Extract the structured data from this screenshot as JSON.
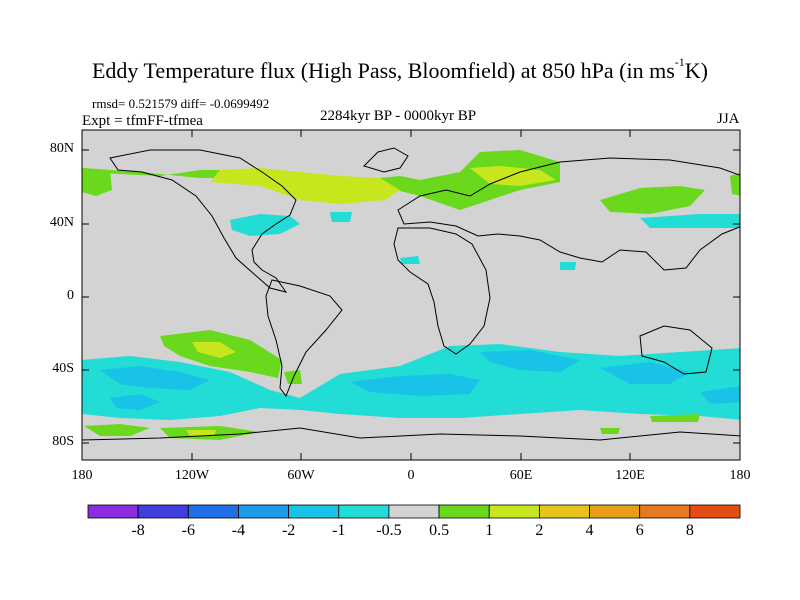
{
  "figure": {
    "title_main": "Eddy Temperature flux (High Pass, Bloomfield) at 850 hPa (in ms",
    "title_sup": "-1",
    "title_end": "K)",
    "stats": "rmsd= 0.521579 diff= -0.0699492",
    "expt": "Expt = tfmFF-tfmea",
    "period": "2284kyr BP - 0000kyr BP",
    "season": "JJA"
  },
  "map": {
    "lat_labels": [
      "80N",
      "40N",
      "0",
      "40S",
      "80S"
    ],
    "lon_labels": [
      "180",
      "120W",
      "60W",
      "0",
      "60E",
      "120E",
      "180"
    ],
    "ocean_color": "#d3d3d3",
    "coast_color": "#000000"
  },
  "colorbar": {
    "labels": [
      "-8",
      "-6",
      "-4",
      "-2",
      "-1",
      "-0.5",
      "0.5",
      "1",
      "2",
      "4",
      "6",
      "8"
    ],
    "colors": [
      "#8b2be2",
      "#3f3fe0",
      "#1f6fe6",
      "#1e9be8",
      "#19c3e8",
      "#22dcd6",
      "#d3d3d3",
      "#6ad81c",
      "#c8e61e",
      "#e6c41e",
      "#e6a014",
      "#e6781e",
      "#e64b14"
    ]
  }
}
